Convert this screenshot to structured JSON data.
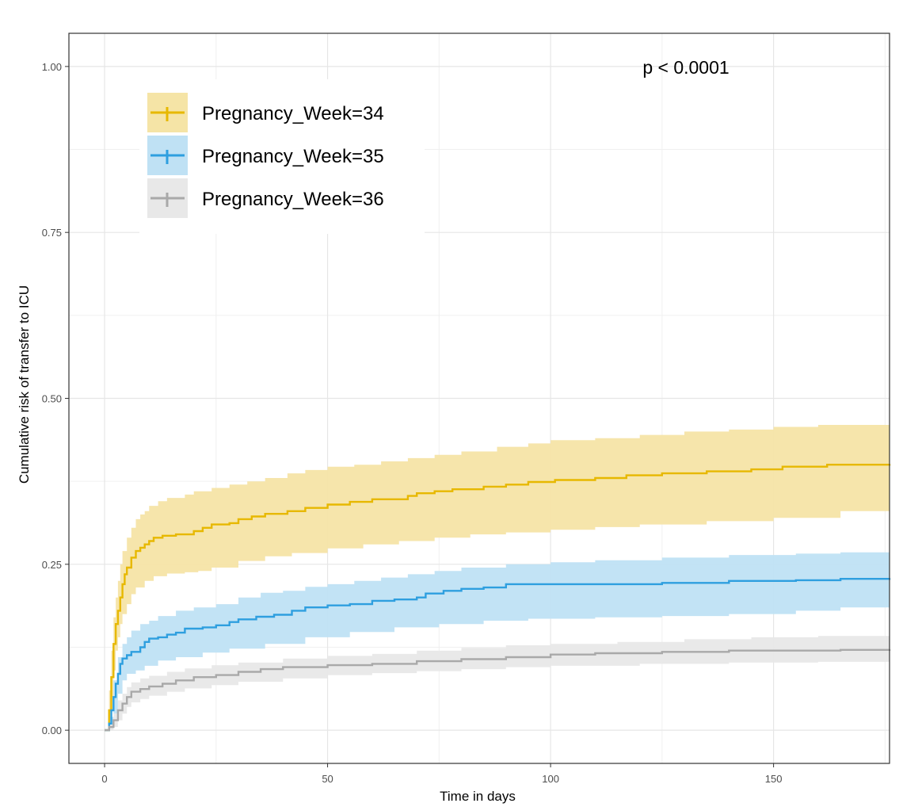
{
  "chart_data": {
    "type": "line",
    "subtype": "step-cumulative-incidence",
    "title": "",
    "xlabel": "Time in days",
    "ylabel": "Cumulative risk of transfer to ICU",
    "xlim": [
      -8,
      176
    ],
    "ylim": [
      -0.05,
      1.05
    ],
    "x_ticks": [
      0,
      50,
      100,
      150
    ],
    "x_tick_labels": [
      "0",
      "50",
      "100",
      "150"
    ],
    "y_ticks": [
      0,
      0.25,
      0.5,
      0.75,
      1.0
    ],
    "y_tick_labels": [
      "0.00",
      "0.25",
      "0.50",
      "0.75",
      "1.00"
    ],
    "grid": true,
    "legend_position": "top-left",
    "annotation": "p < 0.0001",
    "series": [
      {
        "name": "Pregnancy_Week=34",
        "color": "#E7B800",
        "band_color": "#F5E4A6",
        "points": [
          [
            0,
            0
          ],
          [
            1,
            0.03
          ],
          [
            1.5,
            0.08
          ],
          [
            2,
            0.13
          ],
          [
            2.5,
            0.16
          ],
          [
            3,
            0.18
          ],
          [
            3.5,
            0.2
          ],
          [
            4,
            0.22
          ],
          [
            4.5,
            0.235
          ],
          [
            5,
            0.245
          ],
          [
            6,
            0.26
          ],
          [
            7,
            0.27
          ],
          [
            8,
            0.275
          ],
          [
            9,
            0.28
          ],
          [
            10,
            0.285
          ],
          [
            11,
            0.29
          ],
          [
            13,
            0.293
          ],
          [
            16,
            0.295
          ],
          [
            20,
            0.3
          ],
          [
            22,
            0.305
          ],
          [
            24,
            0.31
          ],
          [
            28,
            0.312
          ],
          [
            30,
            0.318
          ],
          [
            33,
            0.322
          ],
          [
            36,
            0.326
          ],
          [
            41,
            0.33
          ],
          [
            45,
            0.335
          ],
          [
            50,
            0.34
          ],
          [
            55,
            0.344
          ],
          [
            60,
            0.348
          ],
          [
            65,
            0.348
          ],
          [
            68,
            0.353
          ],
          [
            70,
            0.357
          ],
          [
            74,
            0.36
          ],
          [
            78,
            0.363
          ],
          [
            85,
            0.367
          ],
          [
            90,
            0.37
          ],
          [
            95,
            0.374
          ],
          [
            101,
            0.377
          ],
          [
            110,
            0.38
          ],
          [
            117,
            0.384
          ],
          [
            125,
            0.387
          ],
          [
            135,
            0.39
          ],
          [
            145,
            0.393
          ],
          [
            152,
            0.397
          ],
          [
            162,
            0.4
          ],
          [
            176,
            0.401
          ]
        ],
        "lower": [
          [
            0,
            0
          ],
          [
            1,
            0.01
          ],
          [
            1.5,
            0.05
          ],
          [
            2,
            0.09
          ],
          [
            2.5,
            0.12
          ],
          [
            3,
            0.14
          ],
          [
            3.5,
            0.16
          ],
          [
            4,
            0.175
          ],
          [
            5,
            0.19
          ],
          [
            6,
            0.205
          ],
          [
            7,
            0.215
          ],
          [
            9,
            0.225
          ],
          [
            11,
            0.232
          ],
          [
            14,
            0.236
          ],
          [
            18,
            0.238
          ],
          [
            21,
            0.24
          ],
          [
            24,
            0.245
          ],
          [
            30,
            0.255
          ],
          [
            36,
            0.262
          ],
          [
            42,
            0.267
          ],
          [
            50,
            0.274
          ],
          [
            58,
            0.28
          ],
          [
            66,
            0.285
          ],
          [
            74,
            0.29
          ],
          [
            82,
            0.295
          ],
          [
            90,
            0.298
          ],
          [
            100,
            0.302
          ],
          [
            110,
            0.306
          ],
          [
            120,
            0.31
          ],
          [
            135,
            0.315
          ],
          [
            150,
            0.32
          ],
          [
            165,
            0.33
          ],
          [
            176,
            0.333
          ]
        ],
        "upper": [
          [
            0,
            0
          ],
          [
            1,
            0.06
          ],
          [
            1.5,
            0.12
          ],
          [
            2,
            0.17
          ],
          [
            2.5,
            0.2
          ],
          [
            3,
            0.225
          ],
          [
            3.5,
            0.25
          ],
          [
            4,
            0.27
          ],
          [
            5,
            0.29
          ],
          [
            6,
            0.305
          ],
          [
            7,
            0.318
          ],
          [
            8,
            0.325
          ],
          [
            9,
            0.33
          ],
          [
            10,
            0.338
          ],
          [
            12,
            0.345
          ],
          [
            14,
            0.35
          ],
          [
            18,
            0.355
          ],
          [
            20,
            0.36
          ],
          [
            24,
            0.365
          ],
          [
            28,
            0.37
          ],
          [
            32,
            0.375
          ],
          [
            36,
            0.38
          ],
          [
            41,
            0.387
          ],
          [
            45,
            0.392
          ],
          [
            50,
            0.397
          ],
          [
            56,
            0.4
          ],
          [
            62,
            0.405
          ],
          [
            68,
            0.41
          ],
          [
            74,
            0.415
          ],
          [
            80,
            0.42
          ],
          [
            88,
            0.427
          ],
          [
            95,
            0.432
          ],
          [
            100,
            0.437
          ],
          [
            110,
            0.44
          ],
          [
            120,
            0.445
          ],
          [
            130,
            0.45
          ],
          [
            140,
            0.453
          ],
          [
            150,
            0.457
          ],
          [
            160,
            0.46
          ],
          [
            176,
            0.462
          ]
        ]
      },
      {
        "name": "Pregnancy_Week=35",
        "color": "#2E9FDF",
        "band_color": "#BFE1F4",
        "points": [
          [
            0,
            0
          ],
          [
            1,
            0.01
          ],
          [
            1.5,
            0.03
          ],
          [
            2,
            0.05
          ],
          [
            2.5,
            0.07
          ],
          [
            3,
            0.085
          ],
          [
            3.5,
            0.1
          ],
          [
            4,
            0.108
          ],
          [
            5,
            0.113
          ],
          [
            6,
            0.118
          ],
          [
            8,
            0.125
          ],
          [
            9,
            0.133
          ],
          [
            10,
            0.138
          ],
          [
            12,
            0.14
          ],
          [
            14,
            0.144
          ],
          [
            16,
            0.147
          ],
          [
            18,
            0.153
          ],
          [
            22,
            0.155
          ],
          [
            25,
            0.158
          ],
          [
            28,
            0.163
          ],
          [
            30,
            0.167
          ],
          [
            34,
            0.171
          ],
          [
            38,
            0.174
          ],
          [
            42,
            0.18
          ],
          [
            45,
            0.185
          ],
          [
            50,
            0.188
          ],
          [
            55,
            0.19
          ],
          [
            60,
            0.195
          ],
          [
            65,
            0.197
          ],
          [
            70,
            0.2
          ],
          [
            72,
            0.206
          ],
          [
            76,
            0.21
          ],
          [
            80,
            0.213
          ],
          [
            85,
            0.215
          ],
          [
            90,
            0.22
          ],
          [
            100,
            0.22
          ],
          [
            110,
            0.22
          ],
          [
            125,
            0.222
          ],
          [
            140,
            0.225
          ],
          [
            155,
            0.226
          ],
          [
            165,
            0.228
          ],
          [
            176,
            0.229
          ]
        ],
        "lower": [
          [
            0,
            0
          ],
          [
            1,
            0.002
          ],
          [
            2,
            0.025
          ],
          [
            3,
            0.055
          ],
          [
            4,
            0.075
          ],
          [
            5,
            0.085
          ],
          [
            7,
            0.09
          ],
          [
            9,
            0.097
          ],
          [
            12,
            0.105
          ],
          [
            16,
            0.11
          ],
          [
            22,
            0.117
          ],
          [
            28,
            0.123
          ],
          [
            36,
            0.13
          ],
          [
            45,
            0.14
          ],
          [
            55,
            0.148
          ],
          [
            65,
            0.155
          ],
          [
            75,
            0.16
          ],
          [
            85,
            0.165
          ],
          [
            95,
            0.168
          ],
          [
            110,
            0.17
          ],
          [
            125,
            0.172
          ],
          [
            140,
            0.175
          ],
          [
            155,
            0.18
          ],
          [
            165,
            0.185
          ],
          [
            176,
            0.186
          ]
        ],
        "upper": [
          [
            0,
            0
          ],
          [
            1,
            0.02
          ],
          [
            2,
            0.075
          ],
          [
            3,
            0.11
          ],
          [
            4,
            0.13
          ],
          [
            5,
            0.14
          ],
          [
            6,
            0.15
          ],
          [
            8,
            0.16
          ],
          [
            10,
            0.165
          ],
          [
            12,
            0.172
          ],
          [
            16,
            0.18
          ],
          [
            20,
            0.185
          ],
          [
            25,
            0.19
          ],
          [
            30,
            0.2
          ],
          [
            35,
            0.207
          ],
          [
            40,
            0.21
          ],
          [
            45,
            0.216
          ],
          [
            50,
            0.22
          ],
          [
            56,
            0.225
          ],
          [
            62,
            0.23
          ],
          [
            68,
            0.235
          ],
          [
            74,
            0.24
          ],
          [
            80,
            0.245
          ],
          [
            90,
            0.25
          ],
          [
            100,
            0.253
          ],
          [
            110,
            0.256
          ],
          [
            125,
            0.26
          ],
          [
            140,
            0.264
          ],
          [
            155,
            0.266
          ],
          [
            165,
            0.268
          ],
          [
            176,
            0.268
          ]
        ]
      },
      {
        "name": "Pregnancy_Week=36",
        "color": "#A9A9A9",
        "band_color": "#E8E8E8",
        "points": [
          [
            0,
            0
          ],
          [
            1,
            0.005
          ],
          [
            2,
            0.015
          ],
          [
            3,
            0.03
          ],
          [
            4,
            0.04
          ],
          [
            5,
            0.05
          ],
          [
            6,
            0.058
          ],
          [
            8,
            0.062
          ],
          [
            10,
            0.066
          ],
          [
            13,
            0.07
          ],
          [
            16,
            0.075
          ],
          [
            20,
            0.08
          ],
          [
            25,
            0.083
          ],
          [
            30,
            0.088
          ],
          [
            35,
            0.092
          ],
          [
            40,
            0.095
          ],
          [
            50,
            0.098
          ],
          [
            60,
            0.1
          ],
          [
            70,
            0.104
          ],
          [
            80,
            0.107
          ],
          [
            90,
            0.11
          ],
          [
            100,
            0.114
          ],
          [
            110,
            0.116
          ],
          [
            125,
            0.118
          ],
          [
            140,
            0.12
          ],
          [
            155,
            0.12
          ],
          [
            165,
            0.121
          ],
          [
            176,
            0.122
          ]
        ],
        "lower": [
          [
            0,
            0
          ],
          [
            2,
            0.005
          ],
          [
            3,
            0.015
          ],
          [
            4,
            0.025
          ],
          [
            5,
            0.035
          ],
          [
            6,
            0.042
          ],
          [
            8,
            0.047
          ],
          [
            10,
            0.052
          ],
          [
            14,
            0.058
          ],
          [
            18,
            0.063
          ],
          [
            24,
            0.068
          ],
          [
            30,
            0.073
          ],
          [
            40,
            0.078
          ],
          [
            50,
            0.083
          ],
          [
            60,
            0.086
          ],
          [
            70,
            0.089
          ],
          [
            80,
            0.092
          ],
          [
            90,
            0.095
          ],
          [
            100,
            0.097
          ],
          [
            120,
            0.1
          ],
          [
            140,
            0.102
          ],
          [
            160,
            0.103
          ],
          [
            176,
            0.104
          ]
        ],
        "upper": [
          [
            0,
            0
          ],
          [
            1,
            0.01
          ],
          [
            2,
            0.025
          ],
          [
            3,
            0.045
          ],
          [
            4,
            0.055
          ],
          [
            5,
            0.065
          ],
          [
            6,
            0.072
          ],
          [
            8,
            0.078
          ],
          [
            10,
            0.082
          ],
          [
            14,
            0.088
          ],
          [
            18,
            0.093
          ],
          [
            24,
            0.098
          ],
          [
            30,
            0.102
          ],
          [
            40,
            0.108
          ],
          [
            50,
            0.112
          ],
          [
            60,
            0.115
          ],
          [
            70,
            0.12
          ],
          [
            80,
            0.124
          ],
          [
            90,
            0.128
          ],
          [
            100,
            0.13
          ],
          [
            115,
            0.133
          ],
          [
            130,
            0.137
          ],
          [
            145,
            0.14
          ],
          [
            160,
            0.142
          ],
          [
            176,
            0.143
          ]
        ]
      }
    ]
  }
}
